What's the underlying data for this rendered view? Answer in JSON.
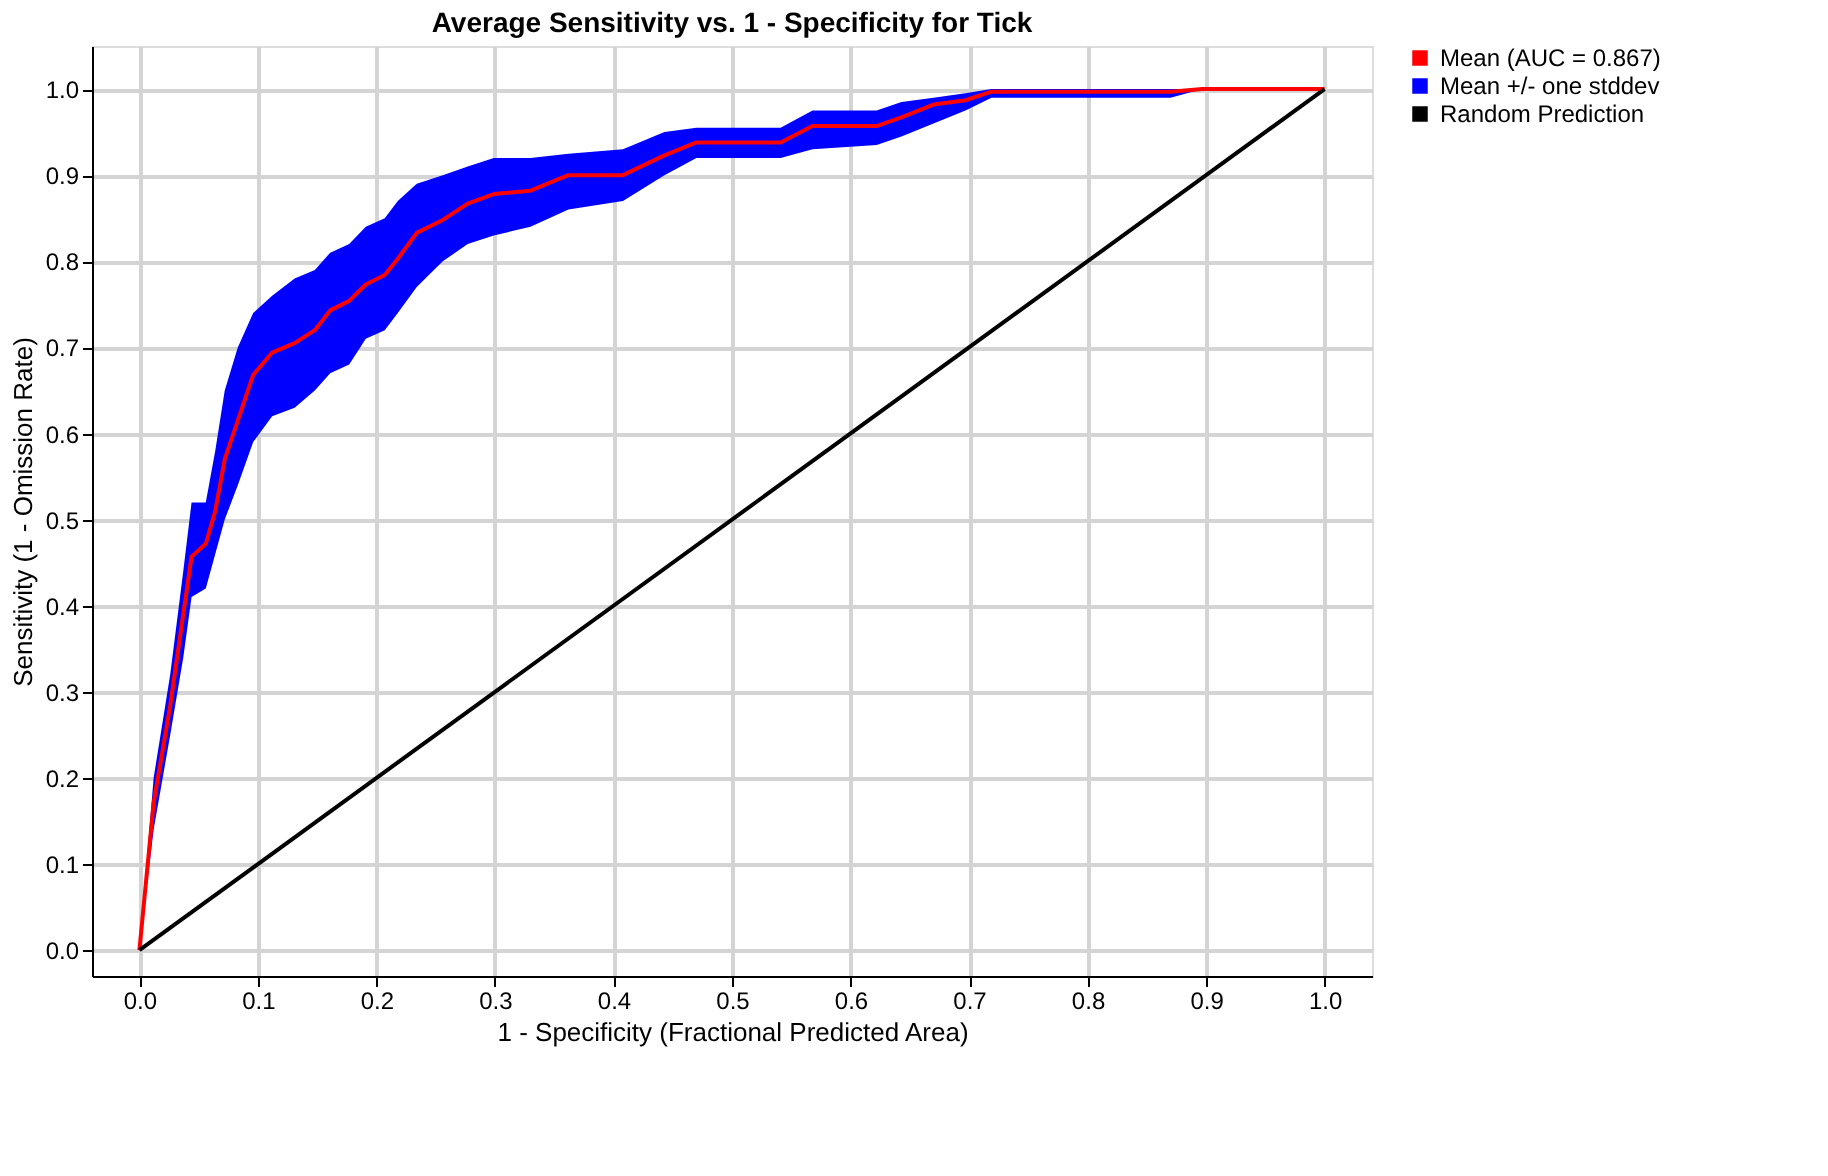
{
  "chart_data": {
    "type": "line",
    "title": "Average Sensitivity vs. 1 - Specificity for Tick",
    "xlabel": "1 - Specificity (Fractional Predicted Area)",
    "ylabel": "Sensitivity (1 - Omission Rate)",
    "xlim": [
      -0.04,
      1.04
    ],
    "ylim": [
      -0.03,
      1.05
    ],
    "xticks": [
      {
        "value": 0,
        "label": "0.0"
      },
      0.1,
      0.2,
      0.3,
      0.4,
      0.5,
      0.6,
      0.7,
      0.8,
      0.9,
      {
        "value": 1,
        "label": "1.0"
      }
    ],
    "yticks": [
      {
        "value": 0,
        "label": "0.0"
      },
      0.1,
      0.2,
      0.3,
      0.4,
      0.5,
      0.6,
      0.7,
      0.8,
      0.9,
      {
        "value": 1,
        "label": "1.0"
      }
    ],
    "grid": true,
    "legend": "top right",
    "series": [
      {
        "name": "Mean (AUC = 0.867)",
        "type": "line",
        "color": "#ff0000",
        "x": [
          0,
          0.012,
          0.026,
          0.037,
          0.044,
          0.056,
          0.064,
          0.072,
          0.083,
          0.096,
          0.112,
          0.131,
          0.148,
          0.161,
          0.177,
          0.191,
          0.207,
          0.218,
          0.234,
          0.256,
          0.277,
          0.299,
          0.33,
          0.362,
          0.408,
          0.443,
          0.47,
          0.541,
          0.568,
          0.622,
          0.643,
          0.67,
          0.697,
          0.719,
          0.87,
          0.897,
          1.0
        ],
        "values": [
          0,
          0.171,
          0.284,
          0.39,
          0.457,
          0.472,
          0.51,
          0.57,
          0.615,
          0.668,
          0.694,
          0.705,
          0.72,
          0.743,
          0.754,
          0.773,
          0.784,
          0.803,
          0.833,
          0.848,
          0.867,
          0.878,
          0.882,
          0.9,
          0.9,
          0.923,
          0.938,
          0.938,
          0.957,
          0.957,
          0.967,
          0.982,
          0.987,
          0.997,
          0.997,
          1.0,
          1.0
        ],
        "lower": [
          0,
          0.14,
          0.25,
          0.34,
          0.41,
          0.42,
          0.46,
          0.5,
          0.54,
          0.59,
          0.62,
          0.63,
          0.65,
          0.67,
          0.68,
          0.71,
          0.72,
          0.74,
          0.77,
          0.8,
          0.82,
          0.83,
          0.84,
          0.86,
          0.87,
          0.9,
          0.92,
          0.92,
          0.93,
          0.935,
          0.945,
          0.96,
          0.975,
          0.99,
          0.99,
          1.0,
          1.0
        ],
        "upper": [
          0,
          0.2,
          0.32,
          0.44,
          0.52,
          0.52,
          0.58,
          0.65,
          0.7,
          0.74,
          0.76,
          0.78,
          0.79,
          0.81,
          0.82,
          0.84,
          0.85,
          0.87,
          0.89,
          0.9,
          0.91,
          0.92,
          0.92,
          0.925,
          0.93,
          0.95,
          0.955,
          0.955,
          0.975,
          0.975,
          0.985,
          0.99,
          0.995,
          1.0,
          1.0,
          1.0,
          1.0
        ]
      },
      {
        "name": "Mean +/- one stddev",
        "type": "area",
        "color": "#0000ff"
      },
      {
        "name": "Random Prediction",
        "type": "line",
        "color": "#000000",
        "x": [
          0,
          1
        ],
        "values": [
          0,
          1
        ]
      }
    ]
  }
}
